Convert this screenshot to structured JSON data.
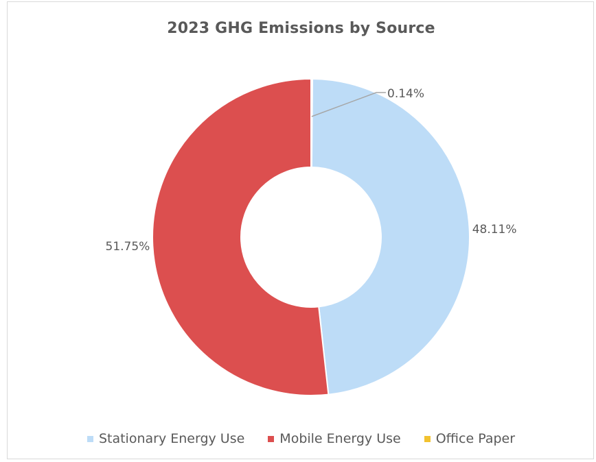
{
  "chart_data": {
    "type": "pie",
    "variant": "doughnut",
    "title": "2023 GHG Emissions by Source",
    "series": [
      {
        "name": "Office Paper",
        "value": 0.14,
        "label": "0.14%",
        "color": "#f2c230"
      },
      {
        "name": "Stationary Energy Use",
        "value": 48.11,
        "label": "48.11%",
        "color": "#bddcf7"
      },
      {
        "name": "Mobile Energy Use",
        "value": 51.75,
        "label": "51.75%",
        "color": "#dc4f4f"
      }
    ],
    "legend": {
      "placement": "bottom",
      "entries": [
        {
          "name": "Stationary Energy Use",
          "color": "#bddcf7"
        },
        {
          "name": "Mobile Energy Use",
          "color": "#dc4f4f"
        },
        {
          "name": "Office Paper",
          "color": "#f2c230"
        }
      ]
    }
  }
}
